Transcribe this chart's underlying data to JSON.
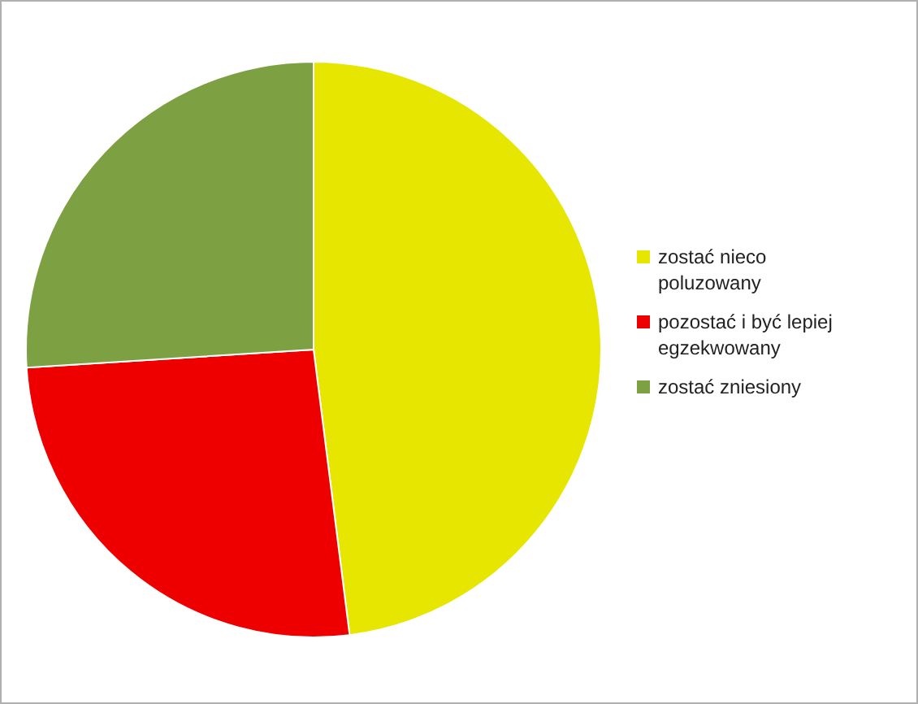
{
  "chart_data": {
    "type": "pie",
    "categories": [
      "zostać nieco poluzowany",
      "pozostać i być lepiej egzekwowany",
      "zostać zniesiony"
    ],
    "values": [
      48,
      26,
      26
    ],
    "colors": [
      "#e6e600",
      "#ee0000",
      "#7da043"
    ],
    "legend": "right"
  }
}
